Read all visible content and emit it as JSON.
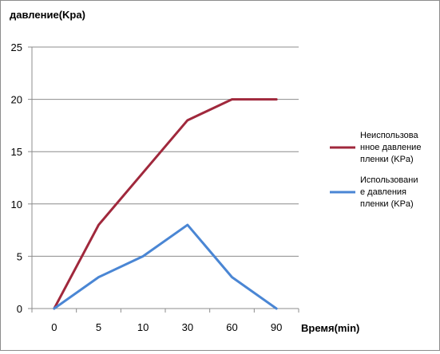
{
  "chart_data": {
    "type": "line",
    "title": "",
    "ylabel": "давление(Kpa)",
    "xlabel": "Время(min)",
    "categories": [
      "0",
      "5",
      "10",
      "30",
      "60",
      "90"
    ],
    "ylim": [
      0,
      25
    ],
    "yticks": [
      "0",
      "5",
      "10",
      "15",
      "20",
      "25"
    ],
    "grid": true,
    "legend": "right",
    "series": [
      {
        "name": "Неиспользованное давление пленки (KPa)",
        "name_lines": [
          "Неиспользова",
          "нное давление",
          "пленки (KPa)"
        ],
        "color": "#A0283C",
        "values": [
          0,
          8,
          13,
          18,
          20,
          20
        ]
      },
      {
        "name": "Использование давления пленки (KPa)",
        "name_lines": [
          "Использовани",
          "е давления",
          "пленки (KPa)"
        ],
        "color": "#4A86D4",
        "values": [
          0,
          3,
          5,
          8,
          3,
          0
        ]
      }
    ]
  }
}
